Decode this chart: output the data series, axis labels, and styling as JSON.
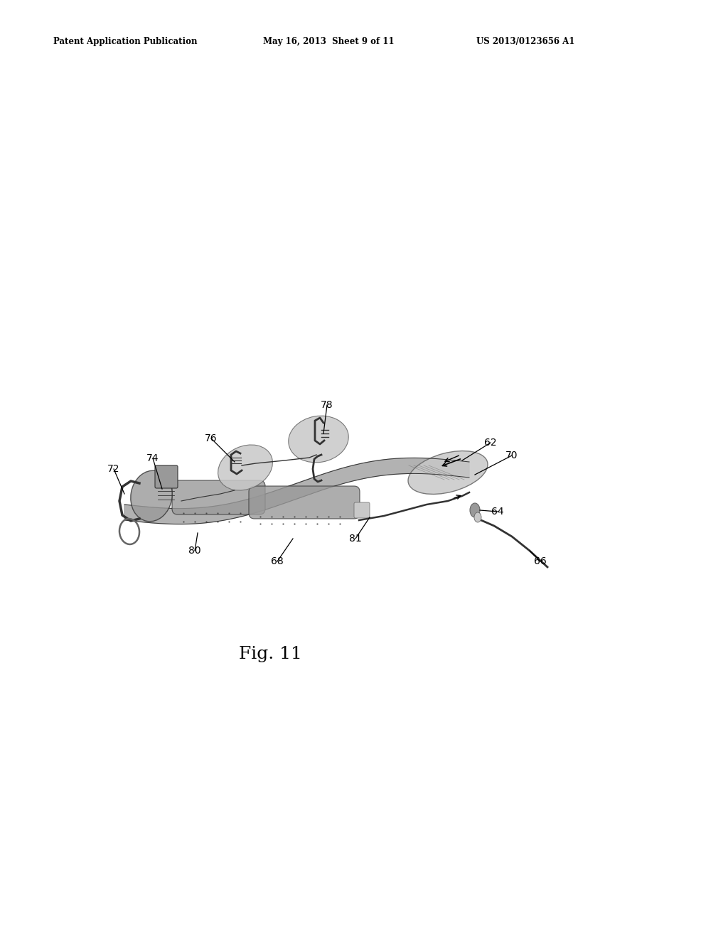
{
  "bg_color": "#ffffff",
  "header_left": "Patent Application Publication",
  "header_mid": "May 16, 2013  Sheet 9 of 11",
  "header_right": "US 2013/0123656 A1",
  "fig_label": "Fig. 11",
  "gray_light": "#c8c8c8",
  "gray_med": "#999999",
  "gray_dark": "#666666",
  "gray_darker": "#333333",
  "line_color": "#1a1a1a"
}
